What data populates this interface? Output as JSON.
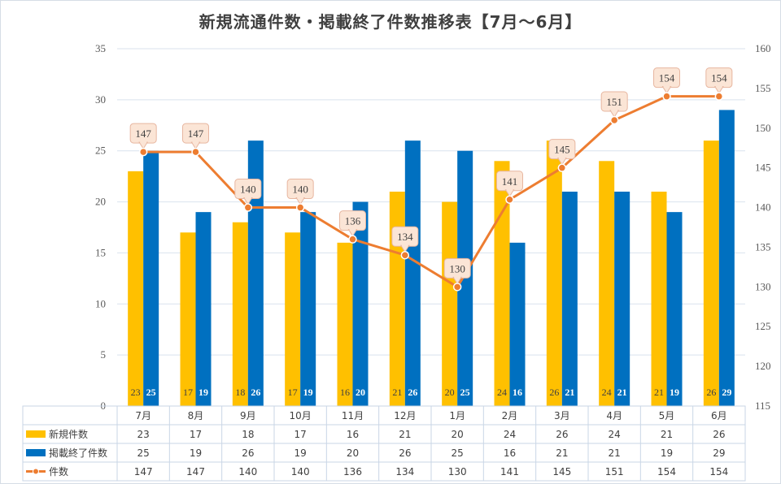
{
  "title": "新規流通件数・掲載終了件数推移表【7月～6月】",
  "chart_data": {
    "type": "bar",
    "categories": [
      "7月",
      "8月",
      "9月",
      "10月",
      "11月",
      "12月",
      "1月",
      "2月",
      "3月",
      "4月",
      "5月",
      "6月"
    ],
    "series": [
      {
        "name": "新規件数",
        "kind": "bar",
        "axis": "left",
        "color": "#FFC000",
        "values": [
          23,
          17,
          18,
          17,
          16,
          21,
          20,
          24,
          26,
          24,
          21,
          26
        ]
      },
      {
        "name": "掲載終了件数",
        "kind": "bar",
        "axis": "left",
        "color": "#0070C0",
        "values": [
          25,
          19,
          26,
          19,
          20,
          26,
          25,
          16,
          21,
          21,
          19,
          29
        ]
      },
      {
        "name": "件数",
        "kind": "line",
        "axis": "right",
        "color": "#ED7D31",
        "values": [
          147,
          147,
          140,
          140,
          136,
          134,
          130,
          141,
          145,
          151,
          154,
          154
        ]
      }
    ],
    "y_left": {
      "min": 0,
      "max": 35,
      "step": 5
    },
    "y_right": {
      "min": 115,
      "max": 160,
      "step": 5
    },
    "grid": true,
    "legend": "data-table"
  }
}
